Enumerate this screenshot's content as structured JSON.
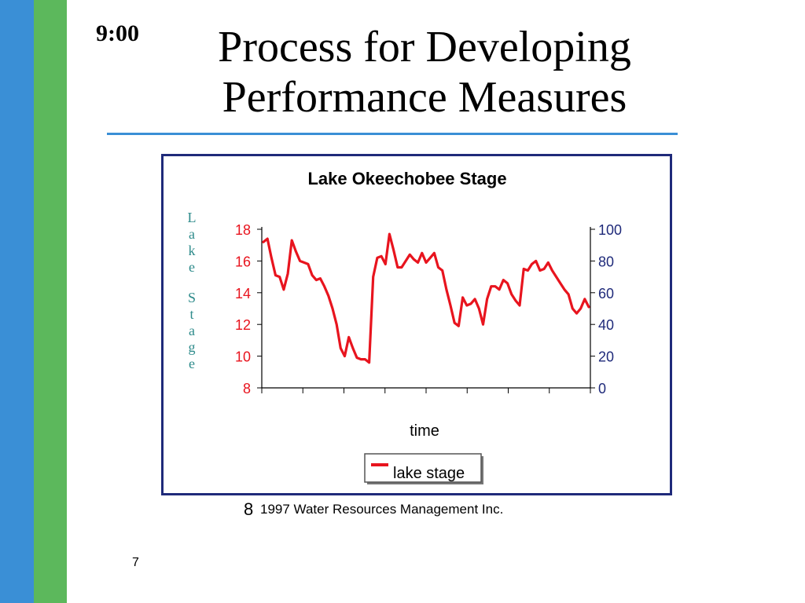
{
  "slide": {
    "time": "9:00",
    "title_line1": "Process for Developing",
    "title_line2": "Performance Measures",
    "copyright_symbol": "8",
    "copyright_text": "1997 Water Resources Management Inc.",
    "page_number": "7"
  },
  "colors": {
    "accent_blue": "#3a8fd6",
    "accent_green": "#5cb85c",
    "frame": "#1f2a7a",
    "series": "#e8141e",
    "left_tick_text": "#e8141e",
    "right_tick_text": "#1f2a7a",
    "ylabel_text": "#2e8b8b"
  },
  "chart_data": {
    "type": "line",
    "title": "Lake Okeechobee Stage",
    "xlabel": "time",
    "ylabel": "Lake Stage",
    "ylim": [
      8,
      18
    ],
    "y_ticks": [
      "8",
      "10",
      "12",
      "14",
      "16",
      "18"
    ],
    "y2lim": [
      0,
      100
    ],
    "y2_ticks": [
      "0",
      "20",
      "40",
      "60",
      "80",
      "100"
    ],
    "legend": "lake stage",
    "legend_position": "bottom-center",
    "x_tick_count": 9,
    "series": [
      {
        "name": "lake stage",
        "x": [
          0,
          1,
          2,
          3,
          4,
          5,
          6,
          7,
          8,
          9,
          10,
          11,
          12,
          13,
          14,
          15,
          16,
          17,
          18,
          19,
          20,
          21,
          22,
          23,
          24,
          25,
          26,
          27,
          28,
          29,
          30,
          31,
          32,
          33,
          34,
          35,
          36,
          37,
          38,
          39,
          40,
          41,
          42,
          43,
          44,
          45,
          46,
          47,
          48,
          49,
          50,
          51,
          52,
          53,
          54,
          55,
          56,
          57,
          58,
          59,
          60,
          61,
          62,
          63,
          64,
          65,
          66,
          67,
          68,
          69,
          70,
          71,
          72,
          73,
          74,
          75,
          76,
          77,
          78,
          79,
          80
        ],
        "values": [
          17.2,
          17.4,
          16.2,
          15.1,
          15.0,
          14.2,
          15.2,
          17.3,
          16.6,
          16.0,
          15.9,
          15.8,
          15.1,
          14.8,
          14.9,
          14.4,
          13.8,
          13.0,
          12.0,
          10.5,
          10.0,
          11.2,
          10.5,
          9.9,
          9.8,
          9.8,
          9.6,
          15.0,
          16.2,
          16.3,
          15.8,
          17.7,
          16.7,
          15.6,
          15.6,
          16.0,
          16.4,
          16.1,
          15.9,
          16.5,
          15.9,
          16.2,
          16.5,
          15.6,
          15.4,
          14.2,
          13.2,
          12.1,
          11.9,
          13.7,
          13.2,
          13.3,
          13.6,
          13.0,
          12.0,
          13.6,
          14.4,
          14.4,
          14.2,
          14.8,
          14.6,
          13.9,
          13.5,
          13.2,
          15.5,
          15.4,
          15.8,
          16.0,
          15.4,
          15.5,
          15.9,
          15.4,
          15.0,
          14.6,
          14.2,
          13.9,
          13.0,
          12.7,
          13.0,
          13.6,
          13.1
        ]
      }
    ]
  }
}
